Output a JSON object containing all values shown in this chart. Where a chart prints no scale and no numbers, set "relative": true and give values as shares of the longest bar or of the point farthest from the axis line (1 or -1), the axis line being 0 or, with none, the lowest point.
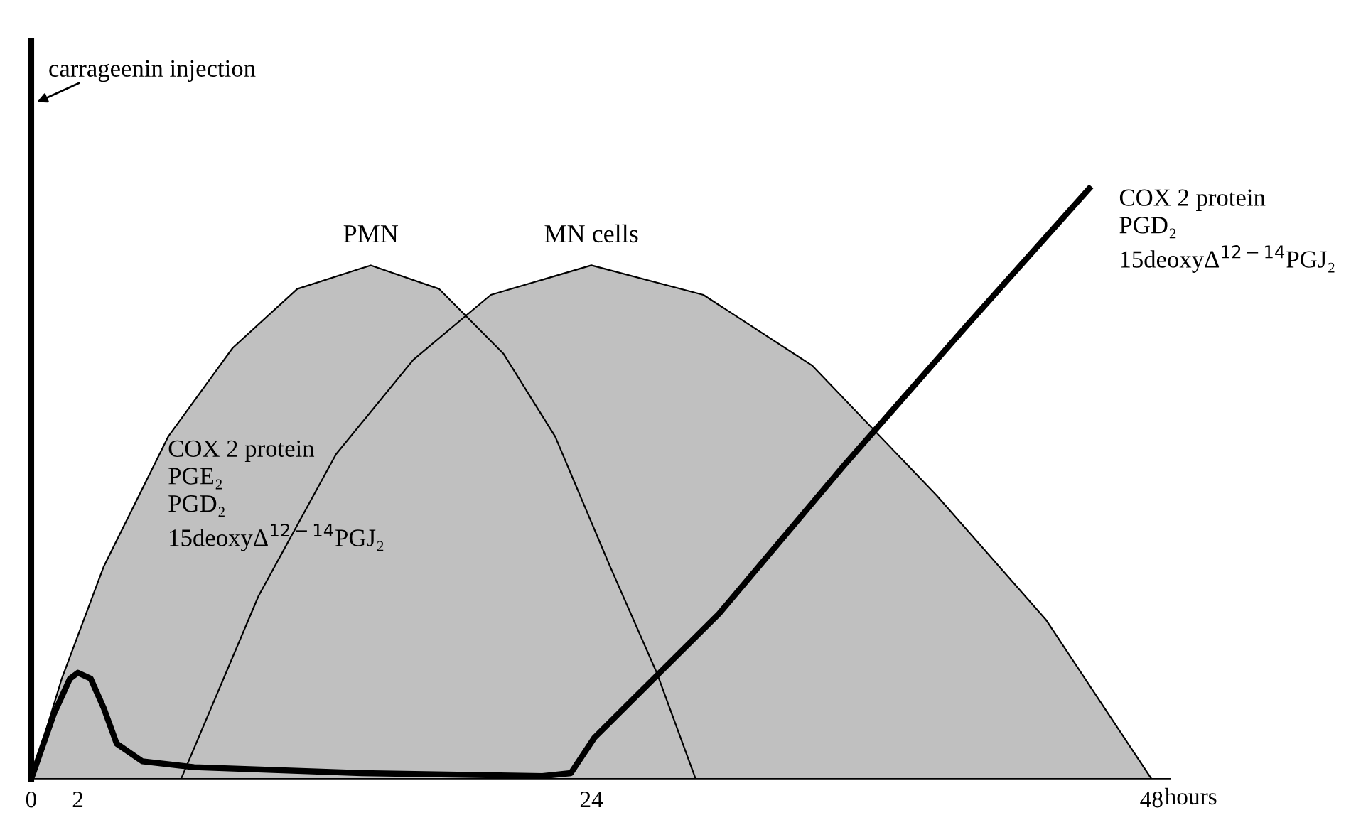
{
  "chart_data": {
    "type": "area",
    "relative": true,
    "xlabel": "hours",
    "xlim": [
      0,
      48.8
    ],
    "xticks": [
      0,
      2,
      24,
      48
    ],
    "grid": false,
    "legend": false,
    "series": [
      {
        "name": "PMN",
        "color": "#c0c0c0",
        "x": [
          0,
          1.31,
          3.11,
          5.87,
          8.63,
          11.4,
          14.55,
          17.48,
          20.24,
          22.45,
          24.8,
          26.8,
          28.47
        ],
        "values": [
          0,
          0.17,
          0.36,
          0.58,
          0.73,
          0.83,
          0.87,
          0.83,
          0.72,
          0.58,
          0.36,
          0.18,
          0
        ]
      },
      {
        "name": "MN cells",
        "color": "#c0c0c0",
        "x": [
          6.42,
          9.74,
          13.06,
          16.37,
          19.69,
          24,
          28.8,
          33.47,
          38.8,
          43.47,
          48
        ],
        "values": [
          0,
          0.31,
          0.55,
          0.71,
          0.82,
          0.87,
          0.82,
          0.7,
          0.48,
          0.27,
          0
        ]
      },
      {
        "type": "line",
        "color": "#000000",
        "x": [
          0,
          0.97,
          1.66,
          2,
          2.55,
          3.11,
          3.66,
          4.76,
          6.98,
          14.16,
          21.9,
          23.12,
          24.13,
          29.47,
          34.8,
          40.13,
          45.33
        ],
        "values": [
          0,
          0.11,
          0.17,
          0.18,
          0.17,
          0.12,
          0.06,
          0.03,
          0.02,
          0.01,
          0.005,
          0.01,
          0.07,
          0.28,
          0.53,
          0.77,
          1.0
        ]
      }
    ],
    "annotations": [
      "carrageenin injection",
      "COX 2 protein\nPGE₂\nPGD₂\n15deoxyΔ$^{12−14}$PGJ₂",
      "COX 2 protein\nPGD₂\n15deoxyΔ$^{12−14}$PGJ₂"
    ]
  }
}
